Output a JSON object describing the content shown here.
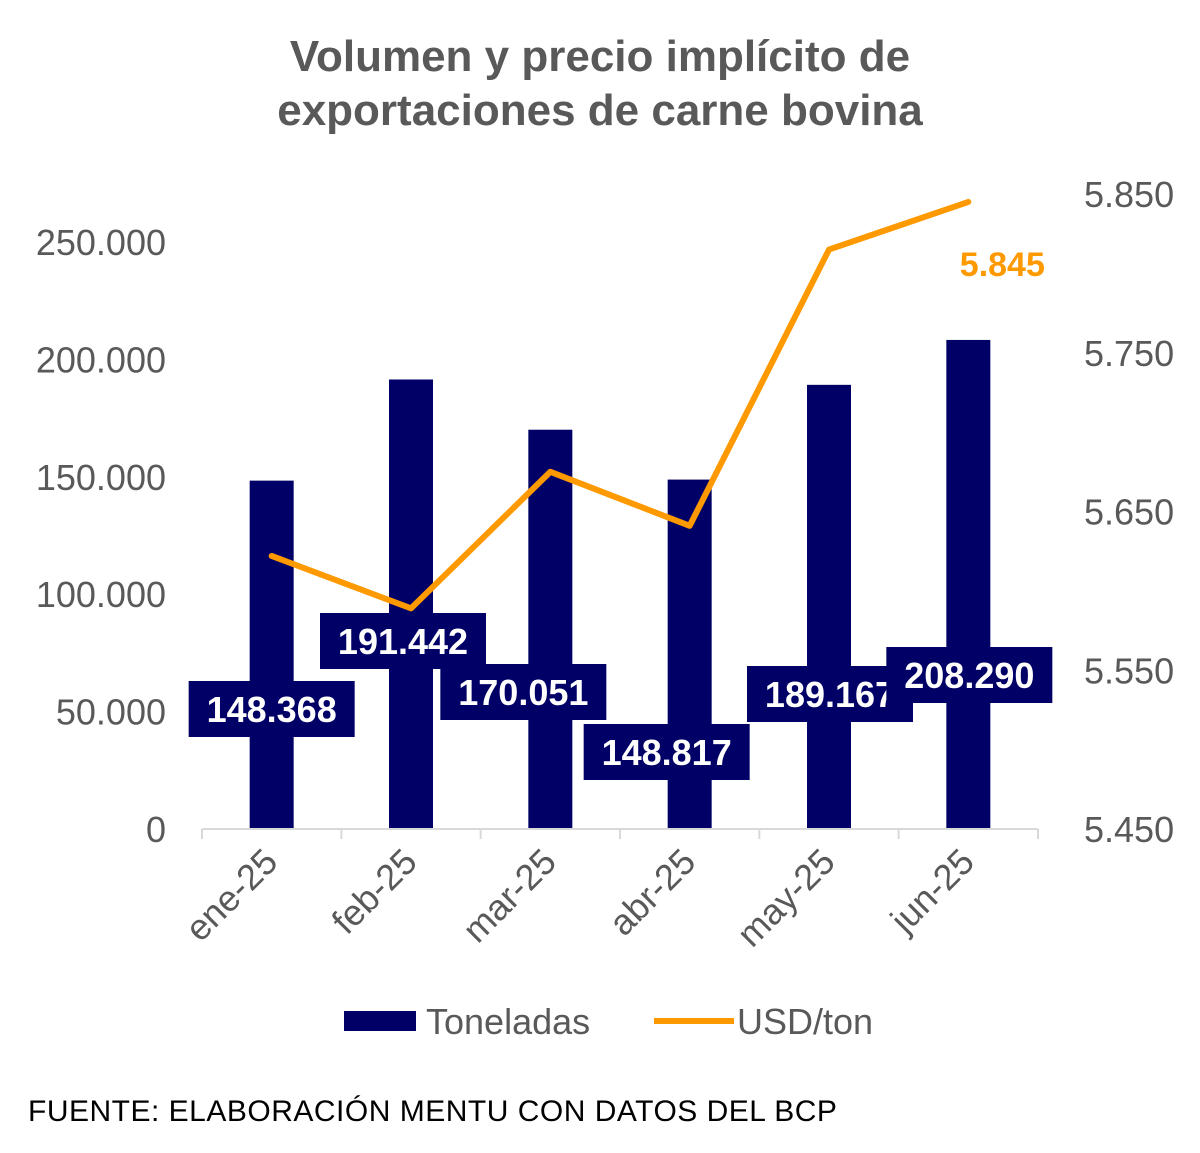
{
  "chart_data": {
    "type": "bar+line",
    "title_line1": "Volumen y precio implícito de",
    "title_line2": "exportaciones de carne bovina",
    "categories": [
      "ene-25",
      "feb-25",
      "mar-25",
      "abr-25",
      "may-25",
      "jun-25"
    ],
    "series": [
      {
        "name": "Toneladas",
        "type": "bar",
        "axis": "left",
        "color": "#000066",
        "values": [
          148368,
          191442,
          170051,
          148817,
          189167,
          208290
        ],
        "labels": [
          "148.368",
          "191.442",
          "170.051",
          "148.817",
          "189.167",
          "208.290"
        ]
      },
      {
        "name": "USD/ton",
        "type": "line",
        "axis": "right",
        "color": "#FF9900",
        "values": [
          5622,
          5589,
          5675,
          5641,
          5815,
          5845
        ],
        "last_label": "5.845"
      }
    ],
    "left_axis": {
      "ylim": [
        0,
        250000
      ],
      "ticks": [
        "0",
        "50.000",
        "100.000",
        "150.000",
        "200.000",
        "250.000"
      ]
    },
    "right_axis": {
      "ylim": [
        5450,
        5850
      ],
      "ticks": [
        "5.450",
        "5.550",
        "5.650",
        "5.750",
        "5.850"
      ]
    },
    "grid": false,
    "legend": "bottom"
  },
  "source": "FUENTE: ELABORACIÓN MENTU CON DATOS DEL BCP"
}
